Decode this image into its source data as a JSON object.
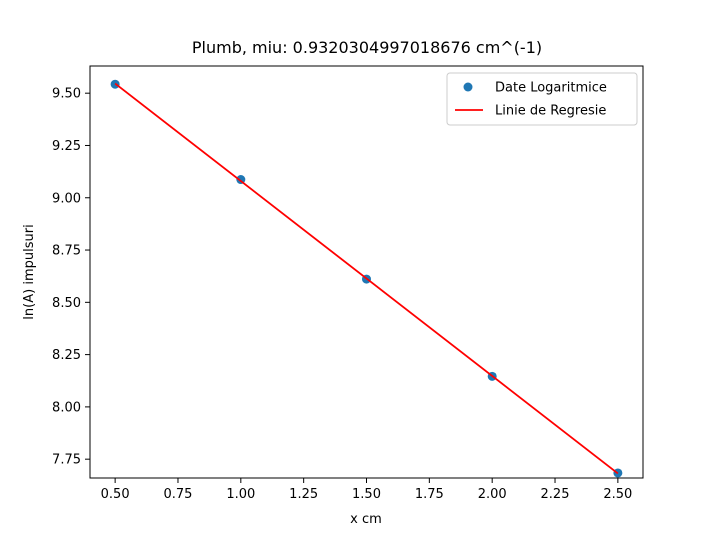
{
  "chart_data": {
    "type": "scatter",
    "title": "Plumb, miu: 0.9320304997018676 cm^(-1)",
    "xlabel": "x cm",
    "ylabel": "ln(A) impulsuri",
    "xlim": [
      0.4,
      2.6
    ],
    "ylim": [
      7.66,
      9.63
    ],
    "x_ticks": [
      0.5,
      0.75,
      1.0,
      1.25,
      1.5,
      1.75,
      2.0,
      2.25,
      2.5
    ],
    "x_tick_labels": [
      "0.50",
      "0.75",
      "1.00",
      "1.25",
      "1.50",
      "1.75",
      "2.00",
      "2.25",
      "2.50"
    ],
    "y_ticks": [
      7.75,
      8.0,
      8.25,
      8.5,
      8.75,
      9.0,
      9.25,
      9.5
    ],
    "y_tick_labels": [
      "7.75",
      "8.00",
      "8.25",
      "8.50",
      "8.75",
      "9.00",
      "9.25",
      "9.50"
    ],
    "grid": false,
    "legend_position": "top-right",
    "series": [
      {
        "name": "Date Logaritmice",
        "kind": "scatter",
        "color": "#1f77b4",
        "x": [
          0.5,
          1.0,
          1.5,
          2.0,
          2.5
        ],
        "y": [
          9.543,
          9.087,
          8.611,
          8.146,
          7.684
        ]
      },
      {
        "name": "Linie de Regresie",
        "kind": "line",
        "color": "#ff0000",
        "x": [
          0.5,
          2.5
        ],
        "y": [
          9.546,
          7.682
        ]
      }
    ]
  }
}
